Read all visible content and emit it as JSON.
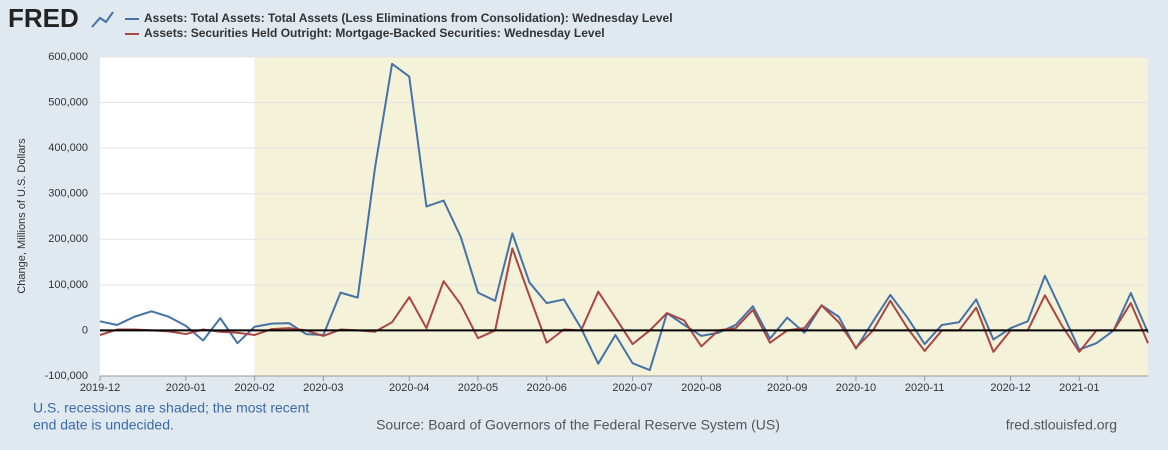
{
  "logo": "FRED",
  "chart_data": {
    "type": "line",
    "y_label": "Change, Millions of U.S. Dollars",
    "categories": [
      "2019-12",
      null,
      null,
      null,
      null,
      "2020-01",
      null,
      null,
      null,
      "2020-02",
      null,
      null,
      null,
      "2020-03",
      null,
      null,
      null,
      null,
      "2020-04",
      null,
      null,
      null,
      "2020-05",
      null,
      null,
      null,
      "2020-06",
      null,
      null,
      null,
      null,
      "2020-07",
      null,
      null,
      null,
      "2020-08",
      null,
      null,
      null,
      null,
      "2020-09",
      null,
      null,
      null,
      "2020-10",
      null,
      null,
      null,
      "2020-11",
      null,
      null,
      null,
      null,
      "2020-12",
      null,
      null,
      null,
      "2021-01",
      null,
      null,
      null,
      null
    ],
    "series": [
      {
        "name": "Assets: Total Assets: Total Assets (Less Eliminations from Consolidation): Wednesday Level",
        "color": "#4572a7",
        "values": [
          20000,
          12000,
          30000,
          42000,
          30000,
          10000,
          -22000,
          27000,
          -28000,
          8000,
          15000,
          16000,
          -8000,
          -10000,
          83000,
          72000,
          355000,
          585000,
          557000,
          272000,
          285000,
          205000,
          83000,
          65000,
          213000,
          105000,
          60000,
          68000,
          5000,
          -73000,
          -10000,
          -72000,
          -87000,
          38000,
          12000,
          -12000,
          -5000,
          12000,
          53000,
          -18000,
          28000,
          -5000,
          55000,
          30000,
          -40000,
          20000,
          78000,
          28000,
          -30000,
          12000,
          18000,
          68000,
          -20000,
          5000,
          20000,
          120000,
          40000,
          -42000,
          -28000,
          0,
          82000,
          -5000
        ]
      },
      {
        "name": "Assets: Securities Held Outright: Mortgage-Backed Securities: Wednesday Level",
        "color": "#aa4643",
        "values": [
          -10000,
          2000,
          2000,
          0,
          -2000,
          -8000,
          2000,
          -3000,
          -5000,
          -10000,
          3000,
          5000,
          0,
          -12000,
          2000,
          0,
          -3000,
          18000,
          73000,
          5000,
          108000,
          57000,
          -17000,
          0,
          180000,
          75000,
          -27000,
          2000,
          0,
          85000,
          28000,
          -30000,
          0,
          38000,
          22000,
          -35000,
          0,
          5000,
          45000,
          -27000,
          0,
          5000,
          55000,
          18000,
          -38000,
          0,
          65000,
          5000,
          -45000,
          0,
          0,
          50000,
          -47000,
          0,
          0,
          77000,
          10000,
          -47000,
          0,
          0,
          60000,
          -28000
        ]
      }
    ],
    "ylim": [
      -100000,
      600000
    ],
    "yticks": [
      {
        "value": -100000,
        "label": "-100,000"
      },
      0,
      {
        "value": 100000,
        "label": "100,000"
      },
      {
        "value": 200000,
        "label": "200,000"
      },
      {
        "value": 300000,
        "label": "300,000"
      },
      {
        "value": 400000,
        "label": "400,000"
      },
      {
        "value": 500000,
        "label": "500,000"
      },
      {
        "value": 600000,
        "label": "600,000"
      }
    ],
    "grid": true,
    "zero_line": true,
    "recession_start": "2020-02",
    "recession_color": "#f4f2d8",
    "notes": [
      "U.S. recessions are shaded; the most recent",
      "end date is undecided."
    ],
    "source": "Source: Board of Governors of the Federal Reserve System (US)",
    "url": "fred.stlouisfed.org"
  }
}
